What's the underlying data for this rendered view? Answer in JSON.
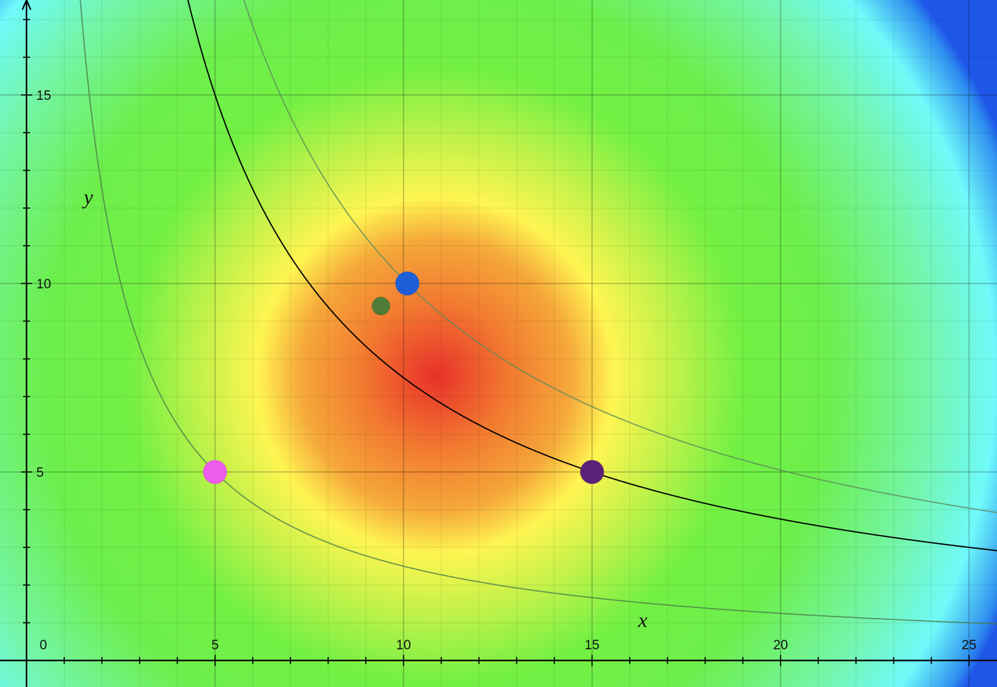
{
  "chart_data": {
    "type": "scatter",
    "title": "",
    "xlabel": "x",
    "ylabel": "y",
    "xlim": [
      -0.7,
      25.9
    ],
    "ylim": [
      -1.0,
      17.5
    ],
    "grid": true,
    "x_ticks": [
      "0",
      "5",
      "10",
      "15",
      "20",
      "25"
    ],
    "y_ticks": [
      "5",
      "10",
      "15"
    ],
    "heatmap": {
      "center": [
        10.8,
        7.6
      ],
      "stops": [
        "#e8312a",
        "#f27a30",
        "#f5a83a",
        "#fff552",
        "#c6f24a",
        "#73f044",
        "#6cef4c",
        "#74f5a9",
        "#6ffafa",
        "#2f8ff0",
        "#1e56e8"
      ]
    },
    "curves": [
      {
        "name": "",
        "equation": "x*y = 25",
        "color": "#4b7d4b"
      },
      {
        "name": "",
        "equation": "x*y = 75",
        "color": "#000000"
      },
      {
        "name": "",
        "equation": "x*y = 101",
        "color": "#5c8a5c"
      }
    ],
    "points": [
      {
        "x": 5,
        "y": 5,
        "color": "#ee5cee",
        "size": "large"
      },
      {
        "x": 15,
        "y": 5,
        "color": "#5b2178",
        "size": "large"
      },
      {
        "x": 10.1,
        "y": 10,
        "color": "#1e5ed8",
        "size": "large"
      },
      {
        "x": 9.4,
        "y": 9.4,
        "color": "#4e7b38",
        "size": "small"
      }
    ]
  }
}
